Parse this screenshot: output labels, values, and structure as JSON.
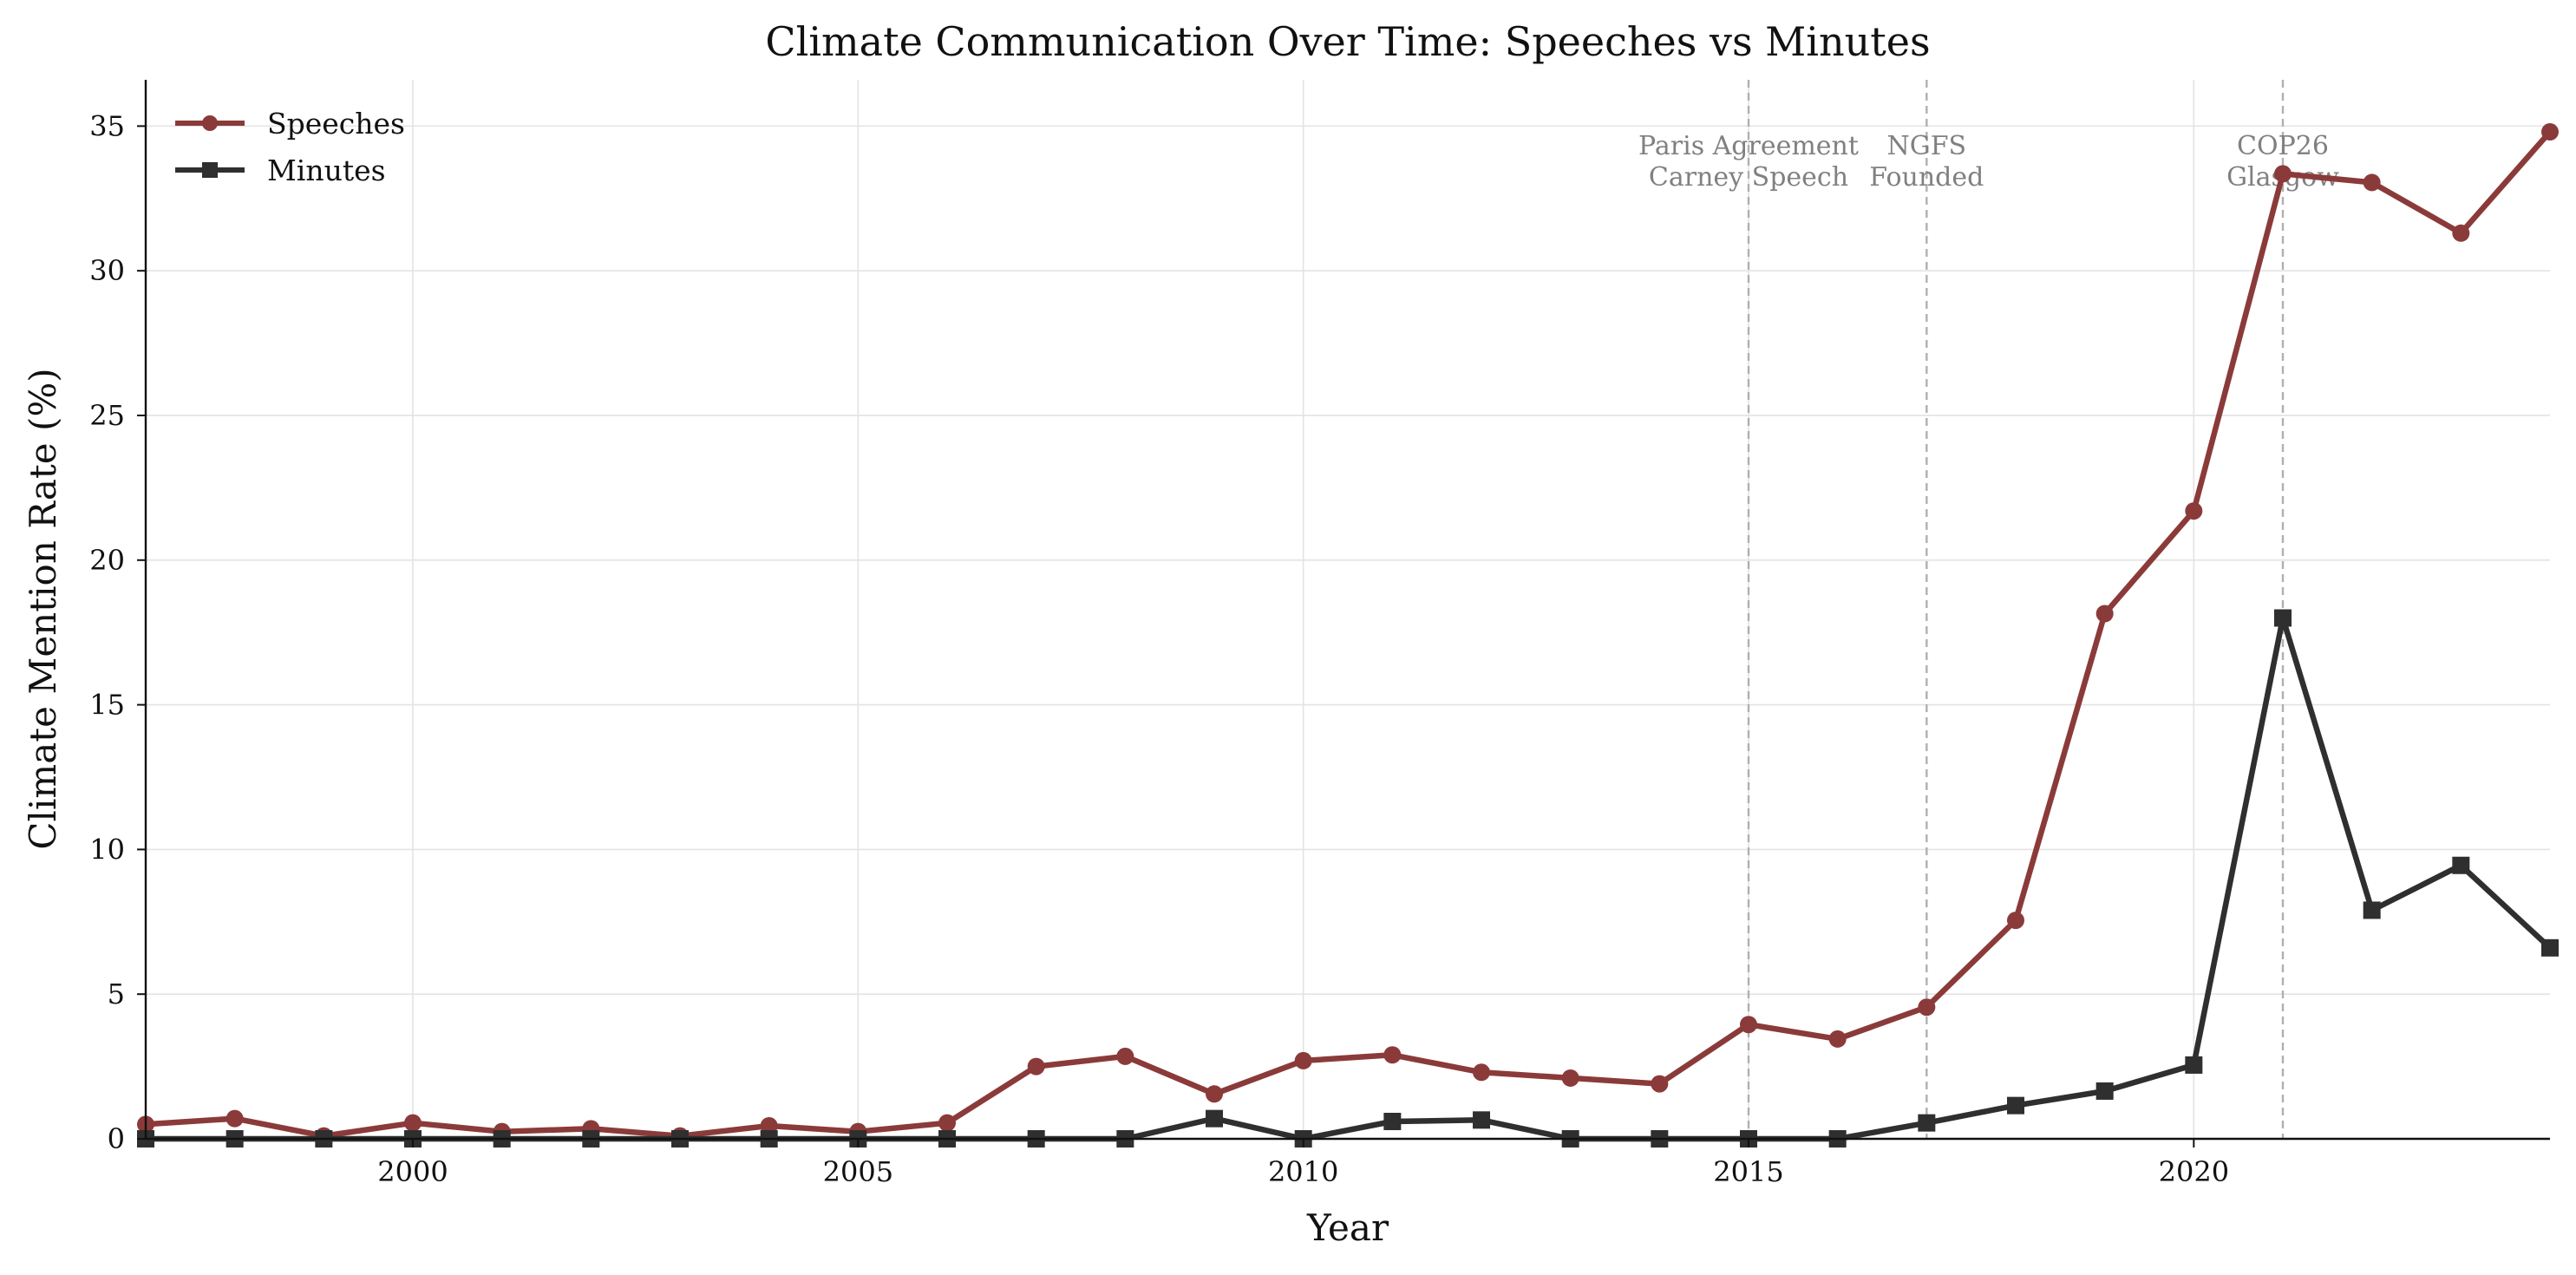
{
  "chart_data": {
    "type": "line",
    "title": "Climate Communication Over Time: Speeches vs Minutes",
    "xlabel": "Year",
    "ylabel": "Climate Mention Rate (%)",
    "xlim": [
      1997,
      2024
    ],
    "ylim": [
      0,
      36.6
    ],
    "xticks": [
      2000,
      2005,
      2010,
      2015,
      2020
    ],
    "yticks": [
      0,
      5,
      10,
      15,
      20,
      25,
      30,
      35
    ],
    "grid": true,
    "legend_position": "top-left",
    "x": [
      1997,
      1998,
      1999,
      2000,
      2001,
      2002,
      2003,
      2004,
      2005,
      2006,
      2007,
      2008,
      2009,
      2010,
      2011,
      2012,
      2013,
      2014,
      2015,
      2016,
      2017,
      2018,
      2019,
      2020,
      2021,
      2022,
      2023,
      2024
    ],
    "series": [
      {
        "name": "Speeches",
        "color": "#8b3a3a",
        "marker": "circle",
        "values": [
          0.5,
          0.7,
          0.1,
          0.55,
          0.25,
          0.35,
          0.1,
          0.45,
          0.25,
          0.55,
          2.5,
          2.85,
          1.55,
          2.7,
          2.9,
          2.3,
          2.1,
          1.9,
          3.95,
          3.45,
          4.55,
          7.55,
          18.15,
          21.7,
          33.35,
          33.05,
          31.3,
          34.8
        ]
      },
      {
        "name": "Minutes",
        "color": "#2f2f2f",
        "marker": "square",
        "values": [
          0,
          0,
          0,
          0,
          0,
          0,
          0,
          0,
          0,
          0,
          0,
          0,
          0.7,
          0,
          0.6,
          0.65,
          0,
          0,
          0,
          0,
          0.55,
          1.15,
          1.65,
          2.55,
          18.0,
          7.9,
          9.45,
          6.6
        ]
      }
    ],
    "events": [
      {
        "x": 2015,
        "lines": [
          "Paris Agreement",
          "Carney Speech"
        ]
      },
      {
        "x": 2017,
        "lines": [
          "NGFS",
          "Founded"
        ]
      },
      {
        "x": 2021,
        "lines": [
          "COP26",
          "Glasgow"
        ]
      }
    ]
  }
}
